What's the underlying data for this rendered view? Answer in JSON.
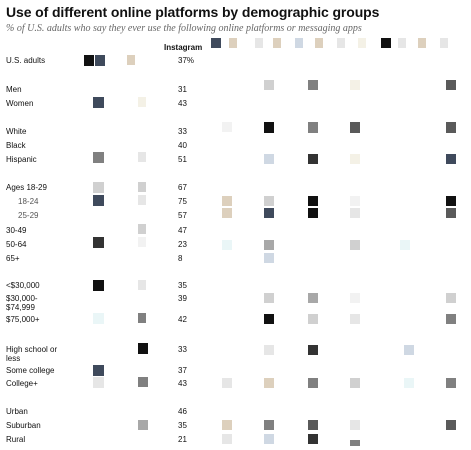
{
  "title": "Use of different online platforms by demographic groups",
  "subtitle": "% of U.S. adults who say they ever use the following online platforms or messaging apps",
  "chart_data": {
    "type": "table",
    "column_header": "Instagram",
    "rows": [
      {
        "label": "U.S. adults",
        "value": "37%"
      },
      {
        "label": "Men",
        "value": "31"
      },
      {
        "label": "Women",
        "value": "43"
      },
      {
        "label": "White",
        "value": "33"
      },
      {
        "label": "Black",
        "value": "40"
      },
      {
        "label": "Hispanic",
        "value": "51"
      },
      {
        "label": "Ages 18-29",
        "value": "67"
      },
      {
        "label": "18-24",
        "value": "75",
        "sub": true
      },
      {
        "label": "25-29",
        "value": "57",
        "sub": true
      },
      {
        "label": "30-49",
        "value": "47"
      },
      {
        "label": "50-64",
        "value": "23"
      },
      {
        "label": "65+",
        "value": "8"
      },
      {
        "label": "<$30,000",
        "value": "35"
      },
      {
        "label": "$30,000-\n$74,999",
        "value": "39"
      },
      {
        "label": "$75,000+",
        "value": "42"
      },
      {
        "label": "High school or\nless",
        "value": "33"
      },
      {
        "label": "Some college",
        "value": "37"
      },
      {
        "label": "College+",
        "value": "43"
      },
      {
        "label": "Urban",
        "value": "46"
      },
      {
        "label": "Suburban",
        "value": "35"
      },
      {
        "label": "Rural",
        "value": "21"
      }
    ]
  },
  "tile_colors": [
    "#f2f2f2",
    "#e6e6e6",
    "#d0d0d0",
    "#a8a8a8",
    "#808080",
    "#5a5a5a",
    "#333333",
    "#111111",
    "#3f4a5c",
    "#cfd8e3",
    "#ddd0bd",
    "#f4f1e6",
    "#eaf6f7"
  ]
}
